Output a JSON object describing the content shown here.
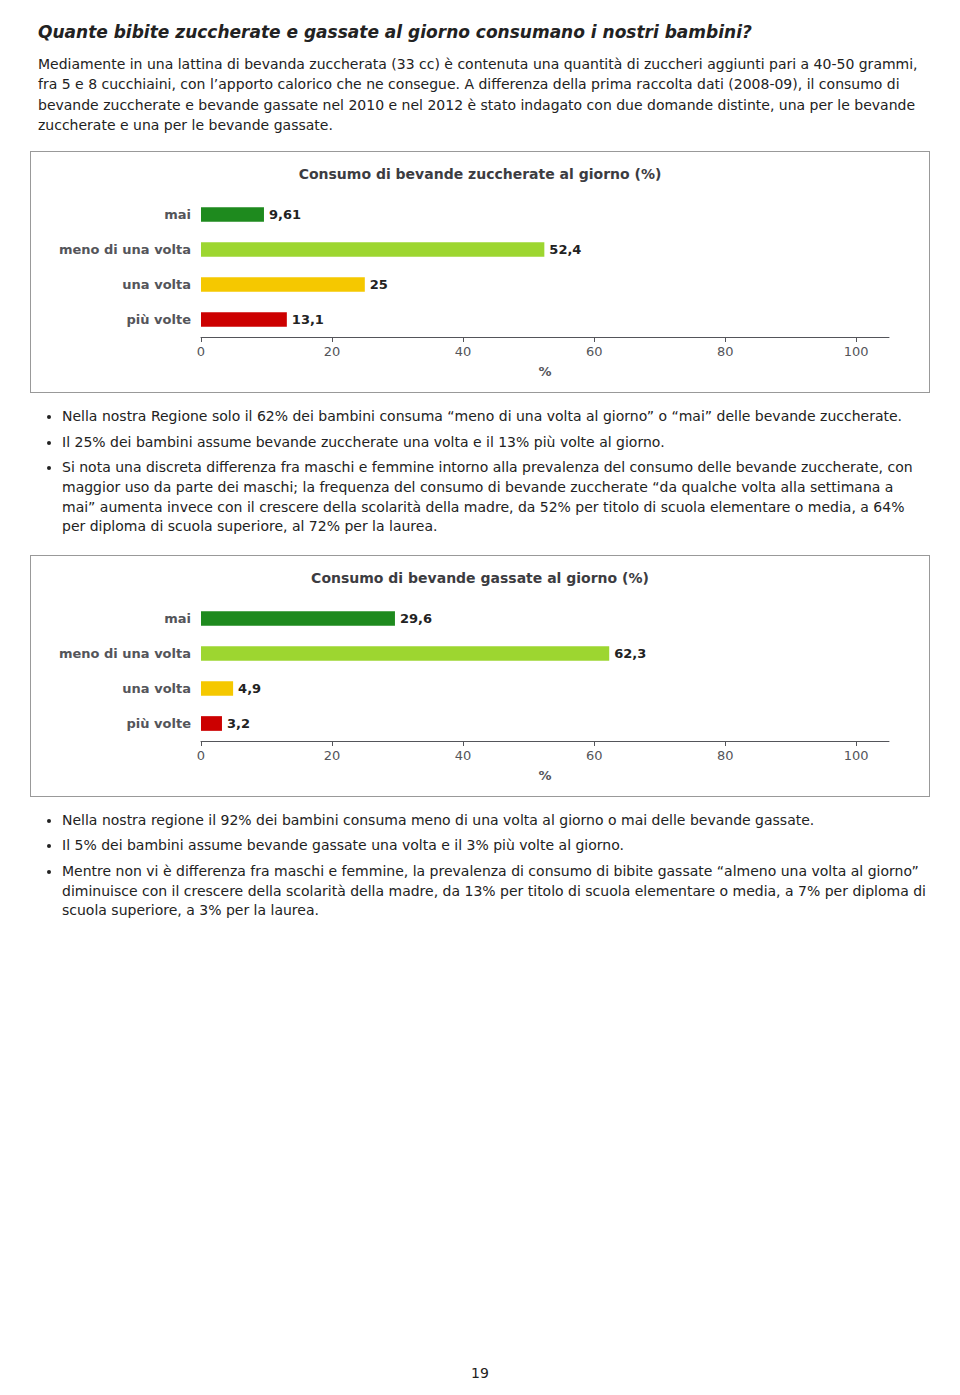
{
  "title": "Quante bibite zuccherate e gassate al giorno consumano i nostri bambini?",
  "subtitle": "Mediamente in una lattina di bevanda zuccherata (33 cc) è contenuta una quantità di zuccheri aggiunti pari a 40-50 grammi, fra 5 e 8 cucchiaini, con l’apporto calorico che ne consegue. A differenza della prima raccolta dati (2008-09), il consumo di bevande zuccherate e bevande gassate nel 2010 e nel 2012 è stato indagato con due domande distinte, una per le bevande zuccherate e una per le bevande gassate.",
  "annotations": [
    "19"
  ],
  "chart_data": [
    {
      "type": "bar",
      "orientation": "horizontal",
      "title": "Consumo di bevande zuccherate al giorno (%)",
      "categories": [
        "mai",
        "meno di una volta",
        "una volta",
        "più volte"
      ],
      "values": [
        9.61,
        52.4,
        25.0,
        13.1
      ],
      "value_labels": [
        "9,61",
        "52,4",
        "25",
        "13,1"
      ],
      "colors": [
        "#1e8a1e",
        "#9dd630",
        "#f5c800",
        "#cc0000"
      ],
      "xlabel": "%",
      "xlim": [
        0,
        105
      ],
      "xticks": [
        0,
        20,
        40,
        60,
        80,
        100
      ],
      "data_labels": true,
      "grid": false,
      "annotations": [
        "Nella nostra Regione solo il 62% dei bambini consuma “meno di una volta al giorno” o “mai” delle bevande zuccherate.",
        "Il 25% dei bambini assume bevande zuccherate una volta e il 13% più volte al giorno.",
        "Si nota una discreta differenza fra maschi e femmine intorno alla prevalenza del  consumo delle bevande zuccherate,  con maggior uso da parte dei maschi;  la frequenza del consumo di bevande zuccherate “da qualche volta alla settimana a mai”  aumenta invece con il crescere della scolarità della madre, da 52% per titolo di scuola elementare o media, a 64% per diploma di scuola superiore, al  72% per la laurea."
      ]
    },
    {
      "type": "bar",
      "orientation": "horizontal",
      "title": "Consumo di bevande gassate al giorno (%)",
      "categories": [
        "mai",
        "meno di una volta",
        "una volta",
        "più volte"
      ],
      "values": [
        29.6,
        62.3,
        4.9,
        3.2
      ],
      "value_labels": [
        "29,6",
        "62,3",
        "4,9",
        "3,2"
      ],
      "colors": [
        "#1e8a1e",
        "#9dd630",
        "#f5c800",
        "#cc0000"
      ],
      "xlabel": "%",
      "xlim": [
        0,
        105
      ],
      "xticks": [
        0,
        20,
        40,
        60,
        80,
        100
      ],
      "data_labels": true,
      "grid": false,
      "annotations": [
        "Nella nostra regione il 92% dei bambini consuma meno di una volta al giorno o mai delle bevande gassate.",
        "Il 5% dei bambini assume bevande gassate una volta e il 3% più volte al giorno.",
        "Mentre non vi è differenza fra maschi e femmine, la prevalenza di consumo di bibite gassate “almeno una volta al giorno” diminuisce con il crescere della scolarità della madre, da 13% per titolo di scuola elementare o media, a 7% per diploma di scuola superiore, a 3% per la laurea."
      ]
    }
  ]
}
